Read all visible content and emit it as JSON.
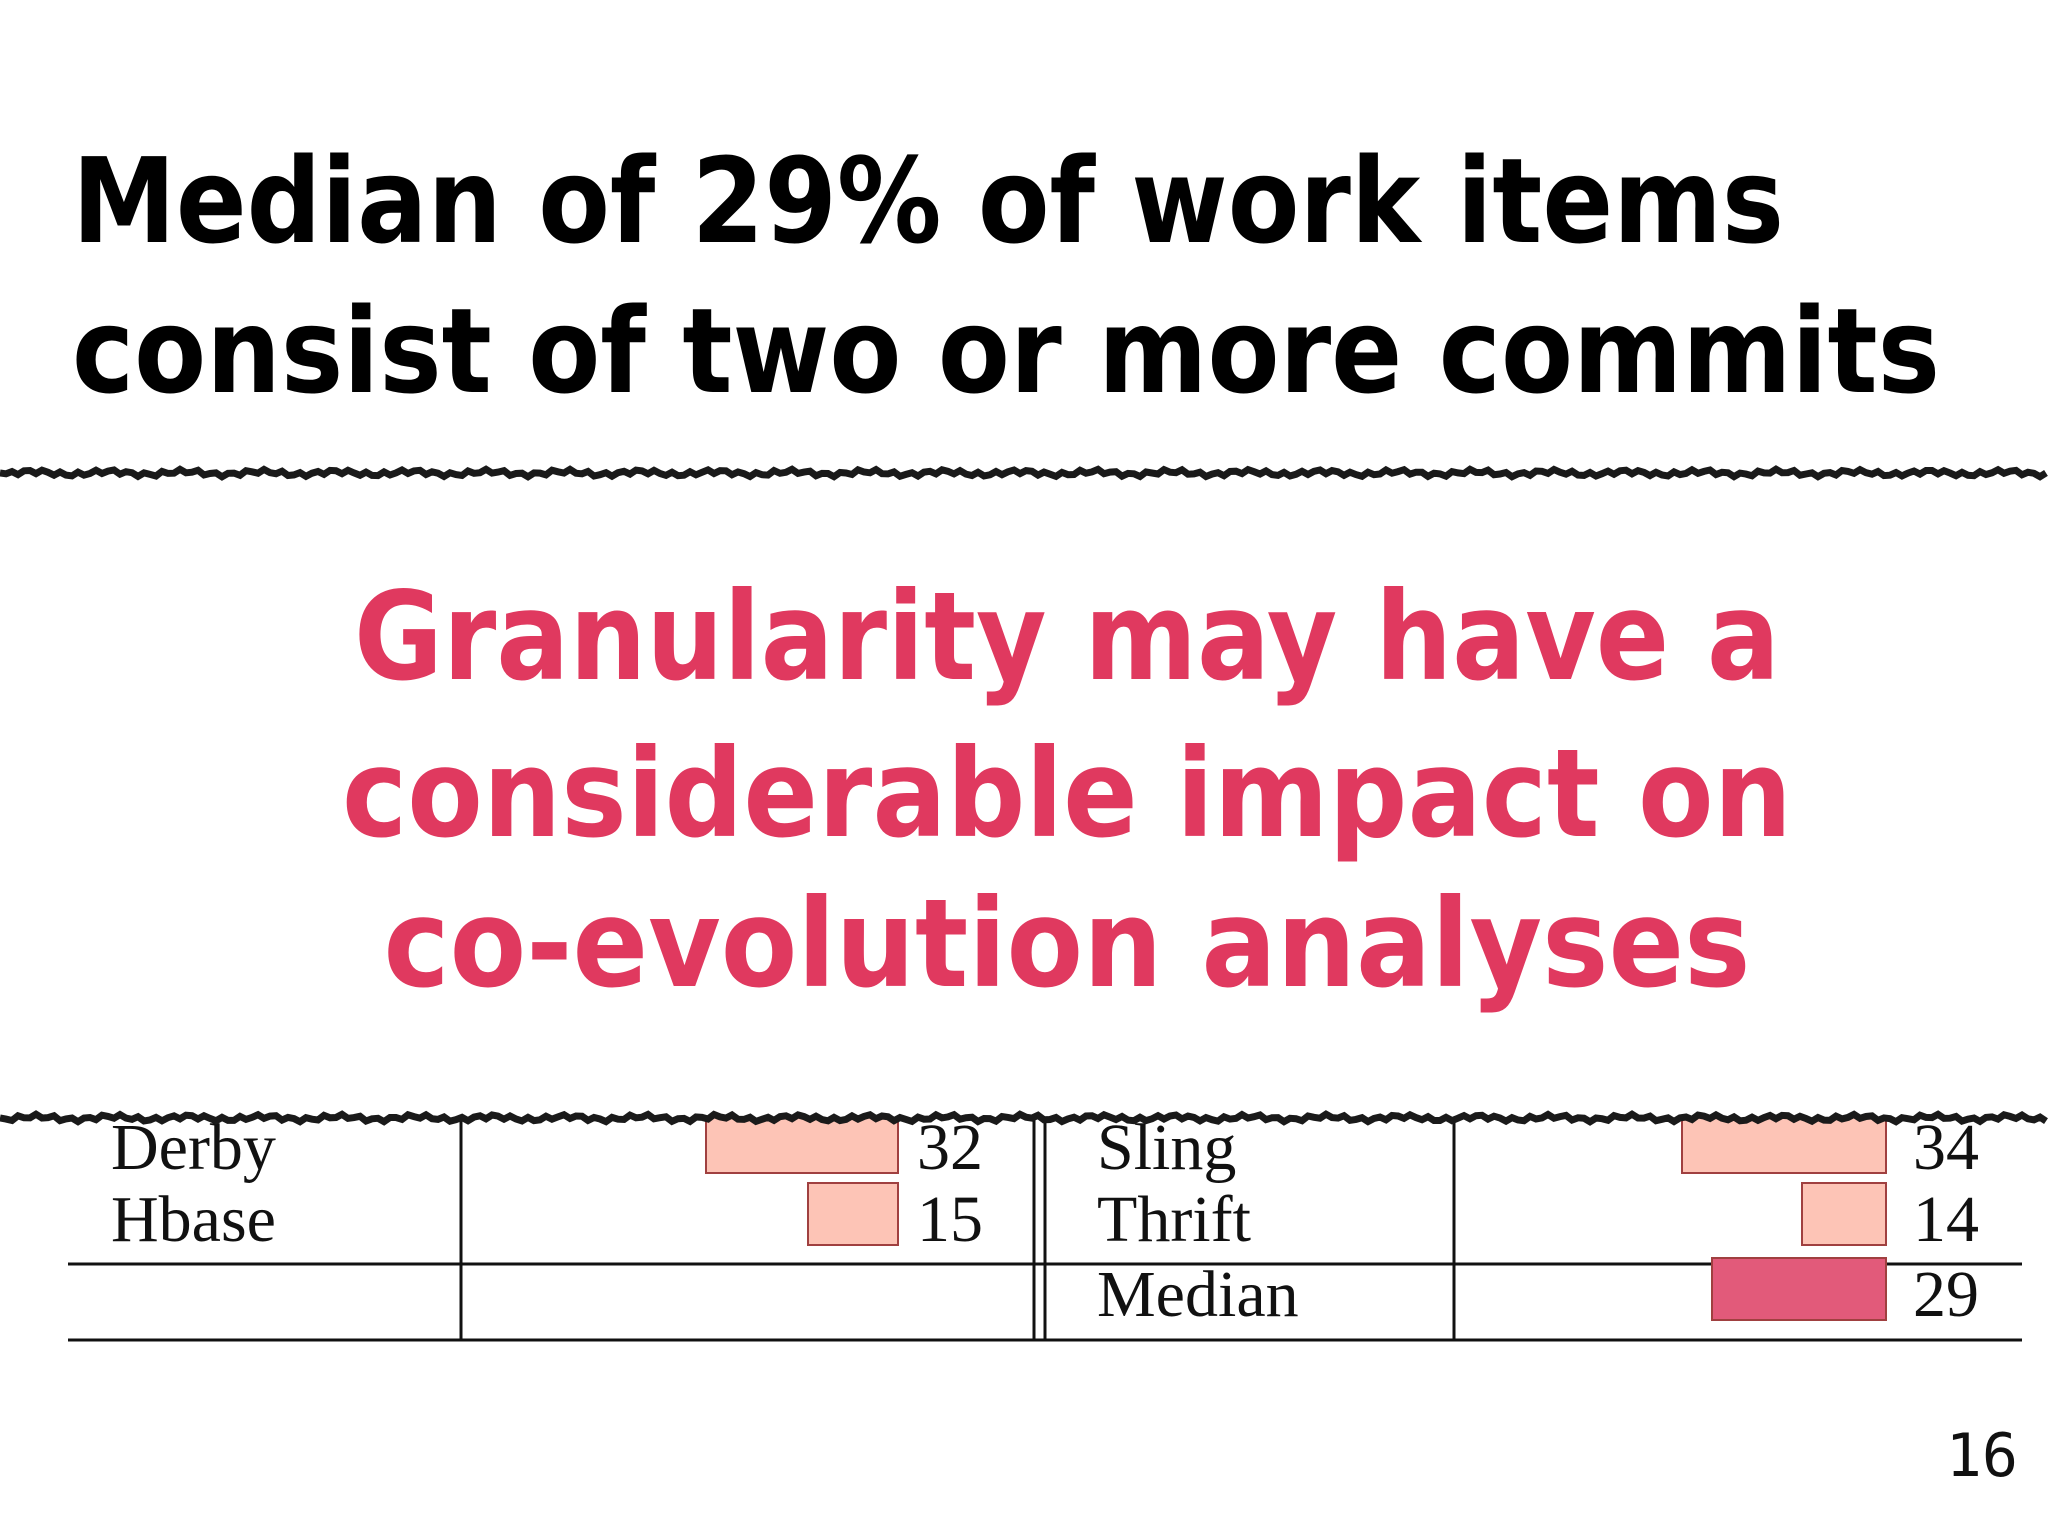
{
  "title": [
    "Median of 29% of work items",
    "consist of two or more commits"
  ],
  "highlight": [
    "Granularity may have a",
    "considerable impact on",
    "co-evolution analyses"
  ],
  "table": {
    "left": [
      {
        "project": "Derby",
        "value": 32
      },
      {
        "project": "Hbase",
        "value": 15
      }
    ],
    "right": [
      {
        "project": "Sling",
        "value": 34
      },
      {
        "project": "Thrift",
        "value": 14
      },
      {
        "project": "Median",
        "value": 29
      }
    ]
  },
  "page_number": "16"
}
